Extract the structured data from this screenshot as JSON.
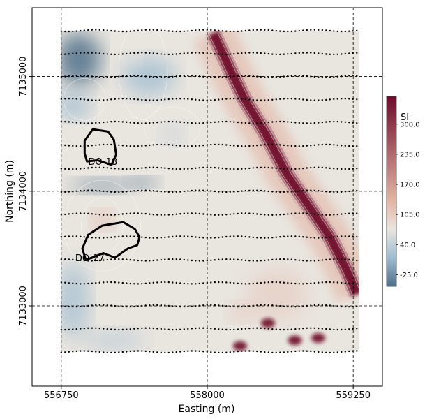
{
  "chart_data": {
    "type": "heatmap",
    "xlabel": "Easting (m)",
    "ylabel": "Northing (m)",
    "xlim": [
      556500,
      559500
    ],
    "ylim": [
      7132300,
      7135600
    ],
    "xticks": [
      556750,
      558000,
      559250
    ],
    "yticks": [
      7133000,
      7134000,
      7135000
    ],
    "xtick_labels": [
      "556750",
      "558000",
      "559250"
    ],
    "ytick_labels": [
      "7133000",
      "7134000",
      "7135000"
    ],
    "grid": "dashed",
    "extent": {
      "x": [
        556750,
        559300
      ],
      "y": [
        7132600,
        7135400
      ]
    },
    "colorbar": {
      "label": "SI",
      "ticks": [
        -25.0,
        40.0,
        105.0,
        170.0,
        235.0,
        300.0
      ],
      "tick_labels": [
        "-25.0",
        "40.0",
        "105.0",
        "170.0",
        "235.0",
        "300.0"
      ],
      "range": [
        -50,
        360
      ],
      "colors": {
        "low": "#4f6f8a",
        "mid_low": "#9fbcd0",
        "mid": "#e9e5df",
        "mid_high": "#e3b5a5",
        "high": "#6e0b2a"
      }
    },
    "survey_lines_northing": [
      7135400,
      7135200,
      7135000,
      7134800,
      7134600,
      7134400,
      7134200,
      7134000,
      7133800,
      7133600,
      7133400,
      7133200,
      7133000,
      7132800,
      7132600
    ],
    "anomaly_trend": {
      "name": "high susceptibility trend",
      "points": [
        [
          558050,
          7135380
        ],
        [
          558200,
          7135050
        ],
        [
          558320,
          7134800
        ],
        [
          558500,
          7134500
        ],
        [
          558680,
          7134150
        ],
        [
          558850,
          7133900
        ],
        [
          559050,
          7133600
        ],
        [
          559200,
          7133300
        ],
        [
          559280,
          7133100
        ]
      ]
    },
    "polygons": [
      {
        "label": "DO-18",
        "points": [
          [
            556970,
            7134260
          ],
          [
            557060,
            7134270
          ],
          [
            557180,
            7134230
          ],
          [
            557220,
            7134320
          ],
          [
            557200,
            7134450
          ],
          [
            557150,
            7134520
          ],
          [
            557020,
            7134540
          ],
          [
            556950,
            7134440
          ],
          [
            556950,
            7134330
          ]
        ],
        "label_pos": [
          556980,
          7134230
        ]
      },
      {
        "label": "DO-27",
        "points": [
          [
            556960,
            7133400
          ],
          [
            557110,
            7133460
          ],
          [
            557210,
            7133420
          ],
          [
            557320,
            7133500
          ],
          [
            557400,
            7133530
          ],
          [
            557420,
            7133600
          ],
          [
            557380,
            7133670
          ],
          [
            557280,
            7133730
          ],
          [
            557100,
            7133700
          ],
          [
            556980,
            7133620
          ],
          [
            556930,
            7133500
          ]
        ],
        "label_pos": [
          556870,
          7133390
        ]
      }
    ]
  }
}
